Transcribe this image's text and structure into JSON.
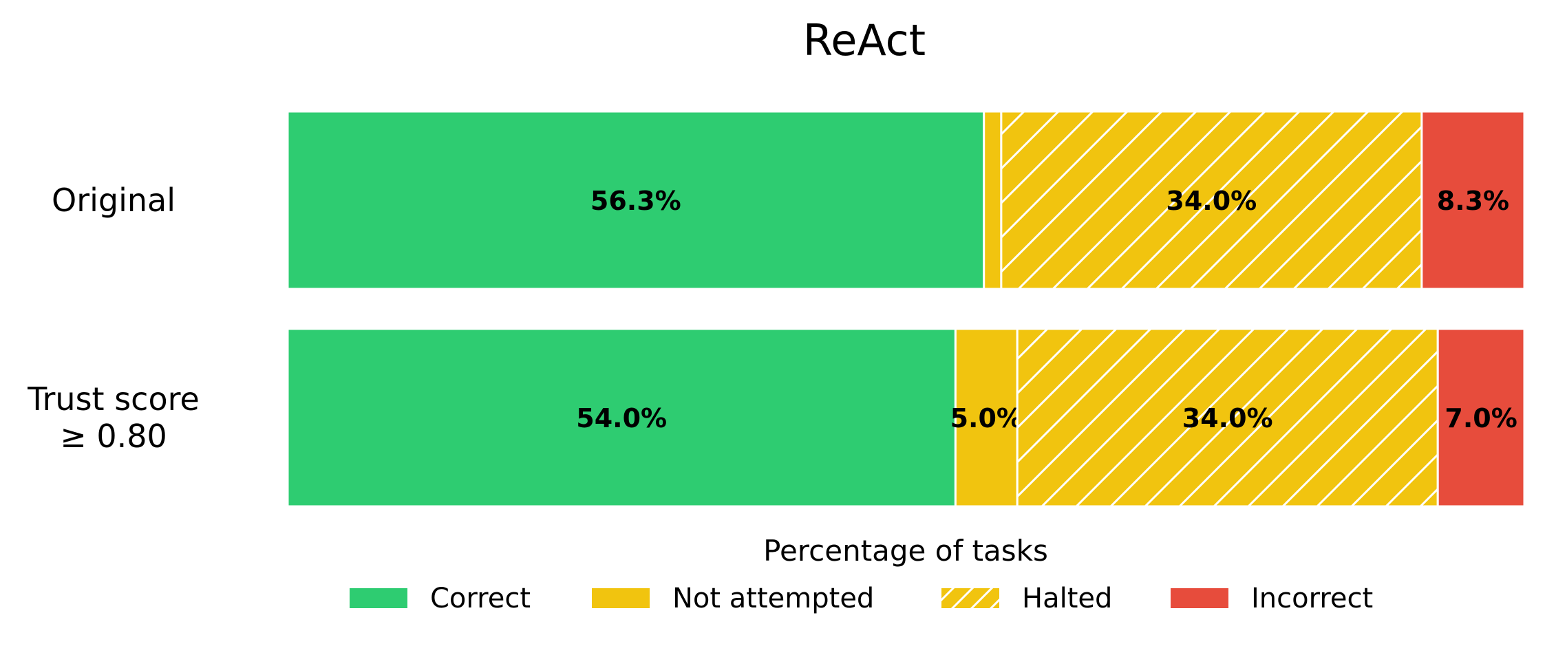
{
  "chart_data": {
    "type": "bar",
    "orientation": "horizontal",
    "stacked": true,
    "title": "ReAct",
    "xlabel": "Percentage of tasks",
    "ylabel": "",
    "xlim": [
      0,
      100
    ],
    "grid": false,
    "legend_position": "bottom",
    "categories": [
      "Original",
      "Trust score\n≥ 0.80"
    ],
    "series": [
      {
        "name": "Correct",
        "color": "#2ecc71",
        "hatch": false,
        "values": [
          56.3,
          54.0
        ],
        "labels": [
          "56.3%",
          "54.0%"
        ]
      },
      {
        "name": "Not attempted",
        "color": "#f1c40f",
        "hatch": false,
        "values": [
          1.4,
          5.0
        ],
        "labels": [
          "",
          "5.0%"
        ]
      },
      {
        "name": "Halted",
        "color": "#f1c40f",
        "hatch": true,
        "values": [
          34.0,
          34.0
        ],
        "labels": [
          "34.0%",
          "34.0%"
        ]
      },
      {
        "name": "Incorrect",
        "color": "#e74c3c",
        "hatch": false,
        "values": [
          8.3,
          7.0
        ],
        "labels": [
          "8.3%",
          "7.0%"
        ]
      }
    ]
  }
}
